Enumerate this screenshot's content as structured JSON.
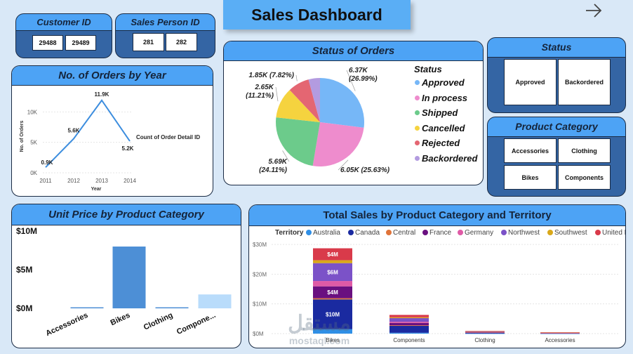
{
  "header": {
    "title": "Sales Dashboard"
  },
  "customer_slicer": {
    "title": "Customer ID",
    "values": [
      "29488",
      "29489"
    ]
  },
  "salesperson_slicer": {
    "title": "Sales Person ID",
    "values": [
      "281",
      "282"
    ]
  },
  "status_slicer": {
    "title": "Status",
    "values": [
      "Approved",
      "Backordered"
    ]
  },
  "category_slicer": {
    "title": "Product Category",
    "values": [
      "Accessories",
      "Clothing",
      "Bikes",
      "Components"
    ]
  },
  "colors": {
    "accent": "#4da3f5",
    "card_dark": "#3465a4",
    "background": "#d9e8f7"
  },
  "orders_by_year": {
    "title": "No. of Orders by Year",
    "ylabel": "No. of Orders",
    "xlabel": "Year",
    "series_label": "Count of Order Detail ID",
    "y_ticks": [
      "0K",
      "5K",
      "10K"
    ],
    "chart_data": {
      "type": "line",
      "x": [
        "2011",
        "2012",
        "2013",
        "2014"
      ],
      "values": [
        0.9,
        5.6,
        11.9,
        5.2
      ],
      "data_labels": [
        "0.9K",
        "5.6K",
        "11.9K",
        "5.2K"
      ],
      "ylim": [
        0,
        12
      ]
    }
  },
  "status_of_orders": {
    "title": "Status of Orders",
    "legend_title": "Status",
    "chart_data": {
      "type": "pie",
      "labels": [
        "Approved",
        "In process",
        "Shipped",
        "Cancelled",
        "Rejected",
        "Backordered"
      ],
      "values": [
        6.37,
        6.05,
        5.69,
        2.65,
        1.85,
        0.99
      ],
      "colors": [
        "#76b7f7",
        "#ee8ccd",
        "#6ccb8b",
        "#f5d33f",
        "#e46672",
        "#b39be0"
      ],
      "data_labels": [
        [
          "6.37K",
          "(26.99%)"
        ],
        [
          "6.05K (25.63%)"
        ],
        [
          "5.69K",
          "(24.11%)"
        ],
        [
          "2.65K",
          "(11.21%)"
        ],
        [
          "1.85K (7.82%)"
        ]
      ]
    }
  },
  "unit_price": {
    "title": "Unit Price by Product Category",
    "y_ticks": [
      "$10M",
      "$5M",
      "$0M"
    ],
    "chart_data": {
      "type": "bar",
      "categories": [
        "Accessories",
        "Bikes",
        "Clothing",
        "Compone..."
      ],
      "values": [
        0.1,
        8.0,
        0.12,
        1.8
      ],
      "colors": [
        "#4d8fd6",
        "#4d8fd6",
        "#4d8fd6",
        "#b9dcfb"
      ],
      "ylim": [
        0,
        10
      ]
    }
  },
  "total_sales": {
    "title": "Total Sales by Product Category and Territory",
    "legend_title": "Territory",
    "territories": [
      {
        "name": "Australia",
        "color": "#2f8fe6"
      },
      {
        "name": "Canada",
        "color": "#1a2aa0"
      },
      {
        "name": "Central",
        "color": "#e0743a"
      },
      {
        "name": "France",
        "color": "#6a1080"
      },
      {
        "name": "Germany",
        "color": "#df5aa6"
      },
      {
        "name": "Northwest",
        "color": "#7b52c8"
      },
      {
        "name": "Southwest",
        "color": "#d9a81a"
      },
      {
        "name": "United Kingdom",
        "color": "#d93a4a"
      }
    ],
    "y_ticks": [
      "$30M",
      "$20M",
      "$10M",
      "$0M"
    ],
    "chart_data": {
      "type": "bar",
      "stacked": true,
      "categories": [
        "Bikes",
        "Components",
        "Clothing",
        "Accessories"
      ],
      "ylim": [
        0,
        30
      ],
      "series": [
        {
          "name": "Australia",
          "values": [
            1.5,
            0.3,
            0.05,
            0.02
          ]
        },
        {
          "name": "Canada",
          "values": [
            10,
            2.3,
            0.3,
            0.15
          ]
        },
        {
          "name": "Central",
          "values": [
            0.4,
            0.2,
            0.05,
            0.02
          ]
        },
        {
          "name": "France",
          "values": [
            4,
            0.8,
            0.1,
            0.05
          ]
        },
        {
          "name": "Germany",
          "values": [
            1.8,
            0.4,
            0.05,
            0.02
          ]
        },
        {
          "name": "Northwest",
          "values": [
            6,
            1.2,
            0.2,
            0.1
          ]
        },
        {
          "name": "Southwest",
          "values": [
            1,
            0.3,
            0.05,
            0.02
          ]
        },
        {
          "name": "United Kingdom",
          "values": [
            4,
            0.8,
            0.1,
            0.05
          ]
        }
      ],
      "data_labels": {
        "Canada": "$10M",
        "France": "$4M",
        "Northwest": "$6M",
        "United Kingdom": "$4M"
      }
    }
  },
  "watermark": {
    "text": "mostaql.com",
    "logo_text": "مستقل"
  }
}
